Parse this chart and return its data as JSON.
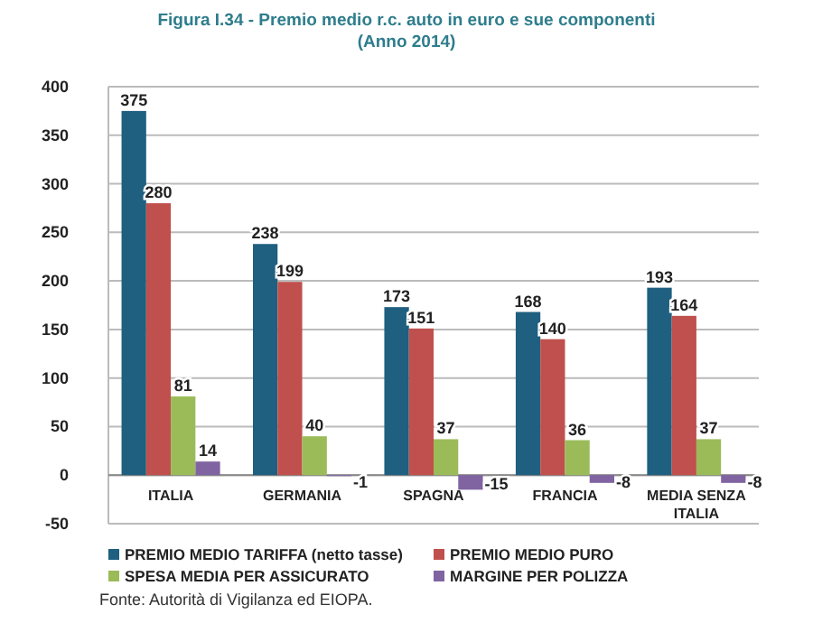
{
  "chart_data": {
    "type": "bar",
    "title": "Figura I.34 - Premio medio r.c. auto in euro e sue componenti",
    "subtitle": "(Anno 2014)",
    "categories": [
      "ITALIA",
      "GERMANIA",
      "SPAGNA",
      "FRANCIA",
      "MEDIA SENZA ITALIA"
    ],
    "series": [
      {
        "name": "PREMIO MEDIO TARIFFA (netto tasse)",
        "color": "#1f5f7f",
        "values": [
          375,
          238,
          173,
          168,
          193
        ]
      },
      {
        "name": "PREMIO MEDIO PURO",
        "color": "#c0504d",
        "values": [
          280,
          199,
          151,
          140,
          164
        ]
      },
      {
        "name": "SPESA MEDIA PER ASSICURATO",
        "color": "#9bbb59",
        "values": [
          81,
          40,
          37,
          36,
          37
        ]
      },
      {
        "name": "MARGINE PER POLIZZA",
        "color": "#8064a2",
        "values": [
          14,
          -1,
          -15,
          -8,
          -8
        ]
      }
    ],
    "ylim": [
      -50,
      400
    ],
    "yticks": [
      -50,
      0,
      50,
      100,
      150,
      200,
      250,
      300,
      350,
      400
    ],
    "grid": "y",
    "legend": "bottom",
    "data_labels": true,
    "annotations": [
      "Fonte: Autorità di Vigilanza ed EIOPA."
    ]
  }
}
